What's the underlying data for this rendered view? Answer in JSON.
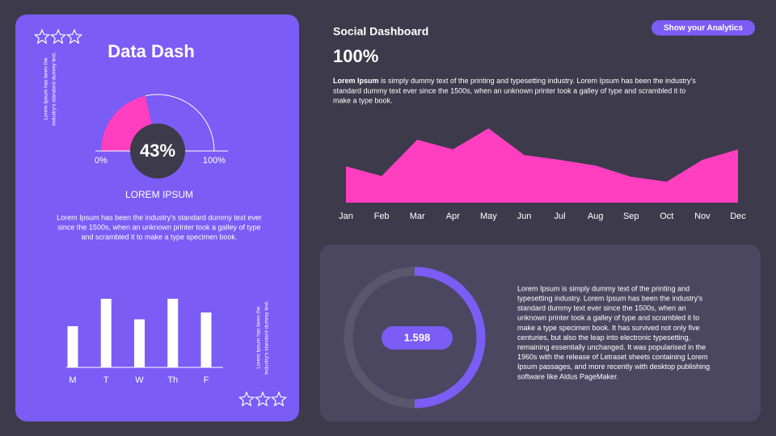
{
  "left_card": {
    "title": "Data Dash",
    "side_note_top": [
      "Lorem Ipsum has been the",
      "industry's standard dummy text."
    ],
    "subtitle": "LOREM IPSUM",
    "body": [
      "Lorem Ipsum has been the industry's standard dummy text ever",
      "since the 1500s, when an unknown printer took a galley of type",
      "and scrambled it to make a type specimen book."
    ],
    "side_note_bottom": [
      "Lorem Ipsum has been the",
      "industry's standard dummy text."
    ]
  },
  "header": {
    "title": "Social Dashboard",
    "value": "100%",
    "button": "Show your Analytics",
    "intro_lead": "Lorem Ipsum",
    "intro_lines": [
      " is simply dummy text of the printing and typesetting industry. Lorem Ipsum has been the industry's",
      "standard dummy text ever since the 1500s, when an unknown printer took a galley of type and scrambled it to",
      "make a type book."
    ]
  },
  "detail_card": {
    "center_label": "1.598",
    "body": [
      "Lorem Ipsum is simply dummy text of the printing and",
      "typesetting industry. Lorem Ipsum has been the industry's",
      "standard dummy text ever since the 1500s, when an",
      "unknown printer took a galley of type and scrambled it to",
      "make a type specimen book. It has survived not only five",
      "centuries, but also the leap into electronic typesetting,",
      "remaining essentially unchanged. It was popularised in the",
      "1960s with the release of Letraset sheets containing Lorem",
      "Ipsum passages, and more recently with desktop publishing",
      "software like Aldus PageMaker."
    ]
  },
  "chart_data": [
    {
      "type": "gauge",
      "value": 43,
      "value_label": "43%",
      "ylim": [
        0,
        100
      ],
      "ticks": [
        {
          "value": 0,
          "label": "0%"
        },
        {
          "value": 100,
          "label": "100%"
        }
      ],
      "color": "#ff3fc0"
    },
    {
      "type": "bar",
      "categories": [
        "M",
        "T",
        "W",
        "Th",
        "F"
      ],
      "values": [
        60,
        100,
        70,
        100,
        80
      ],
      "ylim": [
        0,
        100
      ],
      "color": "#ffffff"
    },
    {
      "type": "area",
      "categories": [
        "Jan",
        "Feb",
        "Mar",
        "Apr",
        "May",
        "Jun",
        "Jul",
        "Aug",
        "Sep",
        "Oct",
        "Nov",
        "Dec"
      ],
      "values": [
        45,
        33,
        78,
        66,
        92,
        59,
        53,
        46,
        32,
        26,
        53,
        66
      ],
      "ylim": [
        0,
        100
      ],
      "color": "#ff3fc0"
    },
    {
      "type": "donut",
      "value": 50,
      "ylim": [
        0,
        100
      ],
      "color": "#7b5cf5"
    }
  ]
}
